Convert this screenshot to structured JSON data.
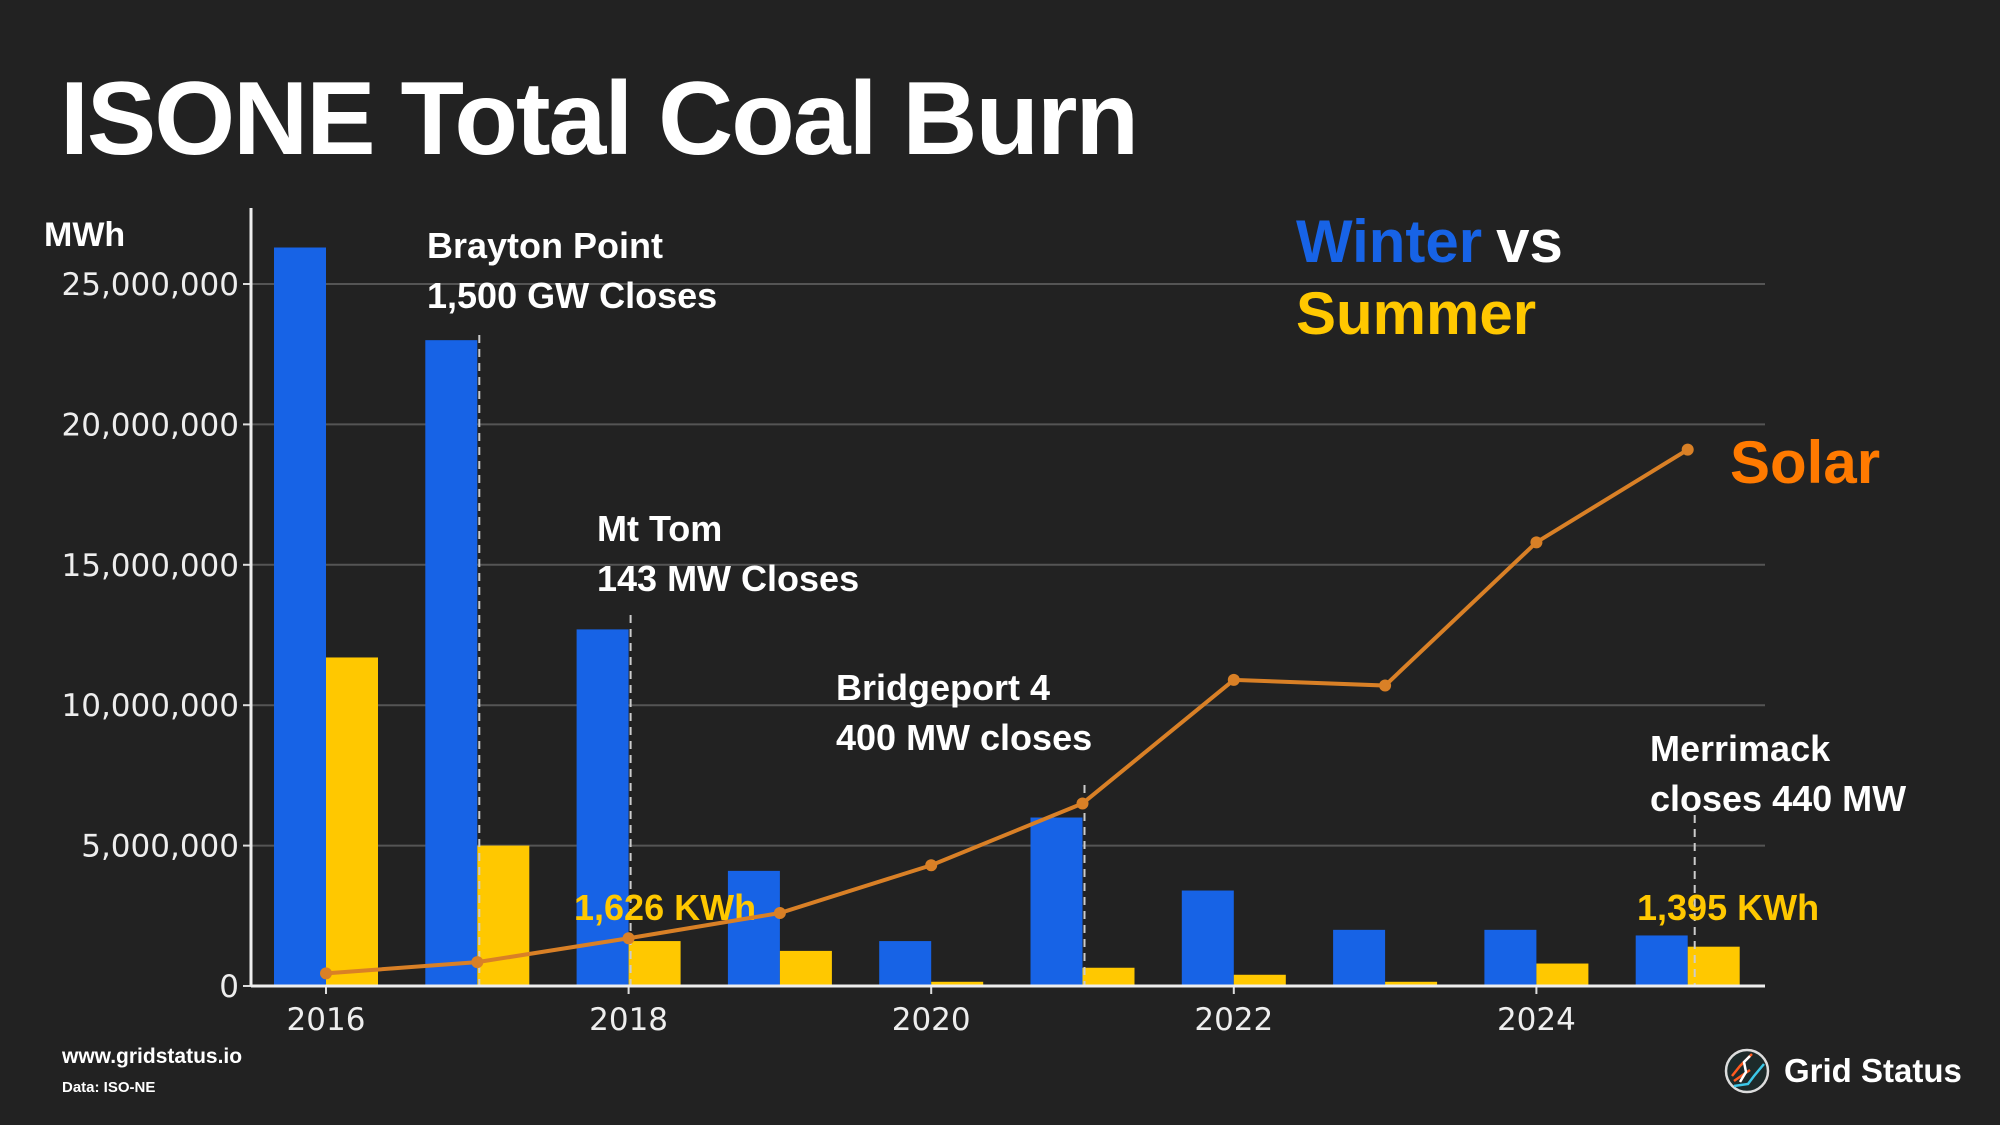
{
  "title": "ISONE Total Coal Burn",
  "footer": {
    "site": "www.gridstatus.io",
    "source": "Data:  ISO-NE",
    "brand": "Grid Status"
  },
  "colors": {
    "winter": "#1763E6",
    "summer": "#FFC800",
    "solar": "#D98026",
    "solar_label": "#FF7A00",
    "background": "#222222"
  },
  "chart_data": {
    "type": "bar",
    "title": "ISONE Total Coal Burn",
    "ylabel": "MWh",
    "xlabel": "",
    "ylim": [
      0,
      27500000
    ],
    "yticks": [
      0,
      5000000,
      10000000,
      15000000,
      20000000,
      25000000
    ],
    "ytick_labels": [
      "0",
      "5,000,000",
      "10,000,000",
      "15,000,000",
      "20,000,000",
      "25,000,000"
    ],
    "xticks": [
      2016,
      2018,
      2020,
      2022,
      2024
    ],
    "xtick_labels": [
      "2016",
      "2018",
      "2020",
      "2022",
      "2024"
    ],
    "grid": true,
    "x": [
      2016,
      2017,
      2018,
      2019,
      2020,
      2021,
      2022,
      2023,
      2024,
      2025
    ],
    "series": [
      {
        "name": "Winter",
        "type": "bar",
        "values": [
          26300000,
          23000000,
          12700000,
          4100000,
          1600000,
          6000000,
          3400000,
          2000000,
          2000000,
          1800000
        ]
      },
      {
        "name": "Summer",
        "type": "bar",
        "values": [
          11700000,
          5000000,
          1600000,
          1250000,
          150000,
          650000,
          400000,
          150000,
          800000,
          1400000
        ]
      },
      {
        "name": "Solar",
        "type": "line",
        "values": [
          450000,
          850000,
          1700000,
          2600000,
          4300000,
          6500000,
          10900000,
          10700000,
          15800000,
          19100000
        ]
      }
    ],
    "legend": {
      "winter": "Winter",
      "vs": "vs",
      "summer": "Summer",
      "solar": "Solar"
    },
    "annotations": [
      {
        "x": 2017,
        "line1": "Brayton Point",
        "line2": "1,500 GW Closes"
      },
      {
        "x": 2018,
        "line1": "Mt Tom",
        "line2": "143 MW Closes"
      },
      {
        "x": 2021,
        "line1": "Bridgeport 4",
        "line2": "400 MW closes"
      },
      {
        "x": 2025,
        "line1": "Merrimack",
        "line2": "closes 440 MW"
      }
    ],
    "value_labels": [
      {
        "x": 2018,
        "text": "1,626 KWh"
      },
      {
        "x": 2025,
        "text": "1,395 KWh"
      }
    ]
  }
}
